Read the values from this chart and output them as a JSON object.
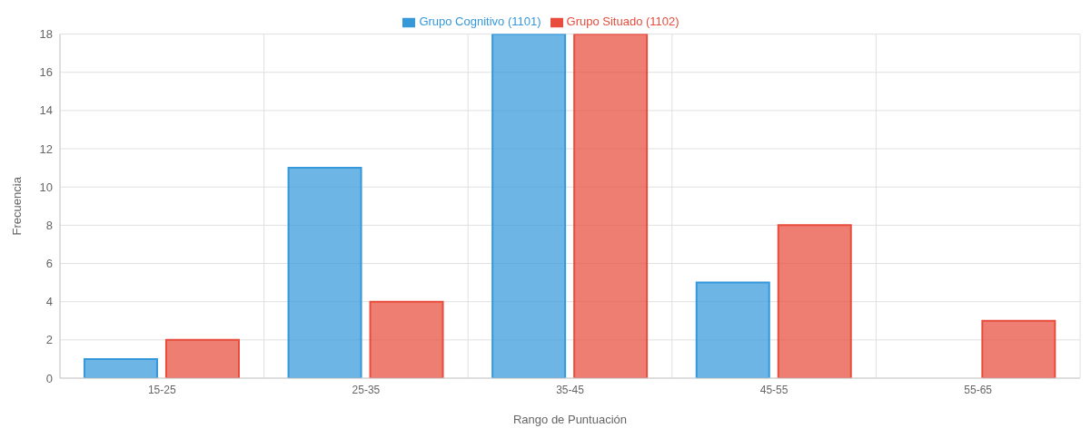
{
  "chart_data": {
    "type": "bar",
    "xlabel": "Rango de Puntuación",
    "ylabel": "Frecuencia",
    "categories": [
      "15-25",
      "25-35",
      "35-45",
      "45-55",
      "55-65"
    ],
    "series": [
      {
        "name": "Grupo Cognitivo (1101)",
        "color": "#3498db",
        "values": [
          1,
          11,
          18,
          5,
          0
        ]
      },
      {
        "name": "Grupo Situado (1102)",
        "color": "#e74c3c",
        "values": [
          2,
          4,
          18,
          8,
          3
        ]
      }
    ],
    "ylim": [
      0,
      18
    ],
    "yticks": [
      0,
      2,
      4,
      6,
      8,
      10,
      12,
      14,
      16,
      18
    ],
    "grid": true,
    "legend": "top"
  }
}
